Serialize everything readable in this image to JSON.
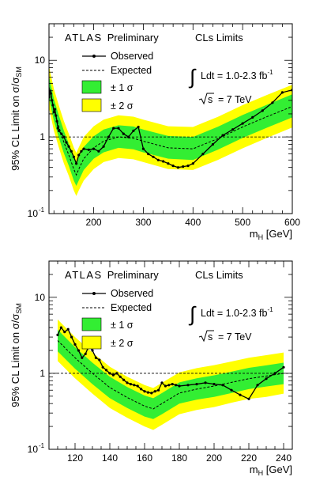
{
  "chart_data": [
    {
      "type": "line",
      "experiment": "ATLAS",
      "status": "Preliminary",
      "method": "CLs Limits",
      "ylabel_main": "95% CL Limit on σ/σ",
      "ylabel_sub": "SM",
      "xlabel_main": "m",
      "xlabel_sub": "H",
      "xlabel_unit": " [GeV]",
      "x_scale": "linear",
      "y_scale": "log",
      "xlim": [
        110,
        600
      ],
      "ylim": [
        0.1,
        30
      ],
      "xticks": [
        200,
        300,
        400,
        500,
        600
      ],
      "yticks": [
        {
          "value": 0.1,
          "base": "10",
          "exp": "-1"
        },
        {
          "value": 1,
          "base": "1",
          "exp": ""
        },
        {
          "value": 10,
          "base": "10",
          "exp": ""
        }
      ],
      "legend": {
        "observed": "Observed",
        "expected": "Expected",
        "band1": "± 1 σ",
        "band2": "± 2 σ",
        "placement": "top-left"
      },
      "lumi_text": "Ldt = 1.0-2.3 fb",
      "lumi_exp": "-1",
      "energy_text": "= 7 TeV",
      "energy_var": "s",
      "reference_line": 1,
      "colors": {
        "band1": "#33ee33",
        "band2": "#ffff00",
        "observed": "#000000",
        "expected": "#000000"
      },
      "observed": {
        "x": [
          110,
          112,
          114,
          116,
          118,
          120,
          122,
          124,
          126,
          128,
          130,
          135,
          140,
          145,
          150,
          155,
          160,
          165,
          170,
          175,
          180,
          190,
          200,
          210,
          220,
          230,
          240,
          250,
          260,
          270,
          280,
          290,
          300,
          310,
          320,
          330,
          340,
          350,
          360,
          370,
          380,
          390,
          400,
          420,
          440,
          460,
          480,
          500,
          520,
          540,
          560,
          580,
          600
        ],
        "y": [
          3.3,
          4.0,
          3.7,
          3.0,
          2.6,
          2.1,
          2.3,
          1.9,
          1.6,
          1.3,
          1.2,
          1.1,
          1.0,
          0.85,
          0.75,
          0.65,
          0.55,
          0.45,
          0.58,
          0.65,
          0.7,
          0.68,
          0.7,
          0.65,
          0.75,
          1.0,
          1.3,
          1.3,
          1.1,
          1.0,
          1.2,
          1.35,
          0.7,
          0.6,
          0.55,
          0.5,
          0.48,
          0.45,
          0.42,
          0.4,
          0.41,
          0.42,
          0.45,
          0.6,
          0.8,
          1.05,
          1.25,
          1.5,
          1.8,
          2.2,
          2.8,
          3.8,
          4.1
        ]
      },
      "expected": {
        "x": [
          110,
          120,
          130,
          140,
          150,
          160,
          165,
          170,
          180,
          200,
          220,
          250,
          280,
          300,
          350,
          400,
          450,
          500,
          550,
          600
        ],
        "y": [
          4.5,
          2.2,
          1.35,
          0.85,
          0.58,
          0.38,
          0.32,
          0.38,
          0.52,
          0.72,
          0.88,
          1.0,
          0.96,
          0.88,
          0.72,
          0.7,
          0.95,
          1.35,
          1.85,
          2.5
        ]
      },
      "band1_upper": [
        6.2,
        3.1,
        1.9,
        1.2,
        0.82,
        0.54,
        0.46,
        0.54,
        0.74,
        1.02,
        1.25,
        1.42,
        1.37,
        1.25,
        1.03,
        1.0,
        1.36,
        1.93,
        2.65,
        3.6
      ],
      "band1_lower": [
        3.2,
        1.6,
        0.97,
        0.61,
        0.42,
        0.27,
        0.23,
        0.27,
        0.37,
        0.52,
        0.63,
        0.72,
        0.69,
        0.63,
        0.52,
        0.5,
        0.68,
        0.97,
        1.33,
        1.8
      ],
      "band2_upper": [
        8.4,
        4.2,
        2.55,
        1.6,
        1.1,
        0.73,
        0.62,
        0.73,
        1.0,
        1.38,
        1.68,
        1.92,
        1.84,
        1.68,
        1.38,
        1.35,
        1.83,
        2.6,
        3.55,
        4.8
      ],
      "band2_lower": [
        2.4,
        1.2,
        0.72,
        0.45,
        0.31,
        0.2,
        0.17,
        0.2,
        0.27,
        0.38,
        0.47,
        0.53,
        0.51,
        0.47,
        0.38,
        0.37,
        0.5,
        0.71,
        0.98,
        1.33
      ]
    },
    {
      "type": "line",
      "experiment": "ATLAS",
      "status": "Preliminary",
      "method": "CLs Limits",
      "ylabel_main": "95% CL Limit on σ/σ",
      "ylabel_sub": "SM",
      "xlabel_main": "m",
      "xlabel_sub": "H",
      "xlabel_unit": " [GeV]",
      "x_scale": "linear",
      "y_scale": "log",
      "xlim": [
        105,
        245
      ],
      "ylim": [
        0.1,
        30
      ],
      "xticks": [
        120,
        140,
        160,
        180,
        200,
        220,
        240
      ],
      "yticks": [
        {
          "value": 0.1,
          "base": "10",
          "exp": "-1"
        },
        {
          "value": 1,
          "base": "1",
          "exp": ""
        },
        {
          "value": 10,
          "base": "10",
          "exp": ""
        }
      ],
      "legend": {
        "observed": "Observed",
        "expected": "Expected",
        "band1": "± 1 σ",
        "band2": "± 2 σ",
        "placement": "top-left"
      },
      "lumi_text": "Ldt = 1.0-2.3 fb",
      "lumi_exp": "-1",
      "energy_text": "= 7 TeV",
      "energy_var": "s",
      "reference_line": 1,
      "colors": {
        "band1": "#33ee33",
        "band2": "#ffff00",
        "observed": "#000000",
        "expected": "#000000"
      },
      "observed": {
        "x": [
          110,
          112,
          114,
          116,
          118,
          120,
          122,
          124,
          126,
          128,
          130,
          132,
          134,
          136,
          138,
          140,
          142,
          144,
          146,
          148,
          150,
          152,
          154,
          156,
          158,
          160,
          162,
          164,
          166,
          168,
          170,
          172,
          174,
          176,
          178,
          180,
          185,
          190,
          195,
          200,
          205,
          210,
          215,
          220,
          225,
          230,
          235,
          240
        ],
        "y": [
          3.2,
          4.0,
          3.5,
          3.8,
          3.0,
          2.4,
          2.0,
          1.6,
          1.8,
          2.3,
          2.0,
          1.6,
          1.5,
          1.2,
          1.1,
          1.0,
          0.95,
          1.0,
          0.9,
          0.82,
          0.75,
          0.72,
          0.7,
          0.68,
          0.62,
          0.58,
          0.56,
          0.55,
          0.58,
          0.6,
          0.75,
          0.68,
          0.7,
          0.72,
          0.7,
          0.68,
          0.7,
          0.72,
          0.75,
          0.72,
          0.7,
          0.6,
          0.52,
          0.46,
          0.7,
          0.85,
          1.0,
          1.2
        ]
      },
      "expected": {
        "x": [
          110,
          120,
          130,
          140,
          150,
          160,
          165,
          170,
          180,
          190,
          200,
          210,
          220,
          230,
          240
        ],
        "y": [
          2.7,
          1.6,
          1.0,
          0.65,
          0.48,
          0.37,
          0.34,
          0.4,
          0.55,
          0.62,
          0.68,
          0.76,
          0.85,
          0.92,
          1.0
        ]
      },
      "band1_upper": [
        3.75,
        2.2,
        1.38,
        0.9,
        0.66,
        0.51,
        0.47,
        0.55,
        0.76,
        0.86,
        0.94,
        1.05,
        1.18,
        1.27,
        1.38
      ],
      "band1_lower": [
        1.95,
        1.15,
        0.72,
        0.47,
        0.35,
        0.27,
        0.25,
        0.29,
        0.4,
        0.45,
        0.49,
        0.55,
        0.62,
        0.67,
        0.72
      ],
      "band2_upper": [
        5.1,
        3.0,
        1.88,
        1.22,
        0.9,
        0.7,
        0.64,
        0.75,
        1.03,
        1.17,
        1.28,
        1.43,
        1.6,
        1.73,
        1.88
      ],
      "band2_lower": [
        1.45,
        0.86,
        0.54,
        0.35,
        0.26,
        0.2,
        0.18,
        0.21,
        0.29,
        0.33,
        0.36,
        0.41,
        0.46,
        0.49,
        0.54
      ]
    }
  ]
}
